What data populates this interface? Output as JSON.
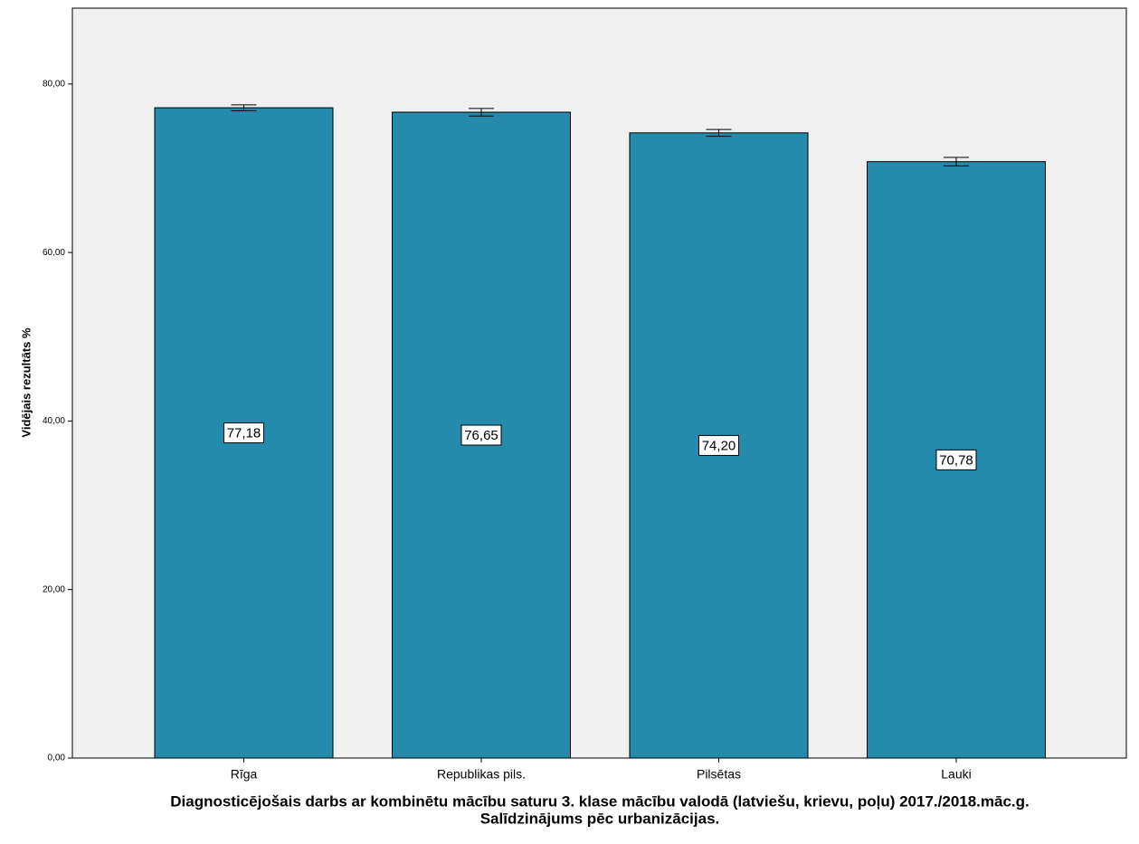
{
  "chart_data": {
    "type": "bar",
    "title": [
      "Diagnosticējošais darbs ar kombinētu mācību saturu 3. klase mācību valodā (latviešu, krievu, poļu) 2017./2018.māc.g.",
      "Salīdzinājums pēc urbanizācijas."
    ],
    "ylabel": "Vidējais rezultāts %",
    "categories": [
      "Rīga",
      "Republikas pils.",
      "Pilsētas",
      "Lauki"
    ],
    "values": [
      77.18,
      76.65,
      74.2,
      70.78
    ],
    "value_labels": [
      "77,18",
      "76,65",
      "74,20",
      "70,78"
    ],
    "errors": [
      0.35,
      0.45,
      0.4,
      0.5
    ],
    "color": "#248bac",
    "background": "#f0f0f0",
    "ylim": [
      0,
      89
    ],
    "yticks": [
      {
        "value": 0,
        "label": "0,00"
      },
      {
        "value": 20,
        "label": "20,00"
      },
      {
        "value": 40,
        "label": "40,00"
      },
      {
        "value": 60,
        "label": "60,00"
      },
      {
        "value": 80,
        "label": "80,00"
      }
    ]
  }
}
